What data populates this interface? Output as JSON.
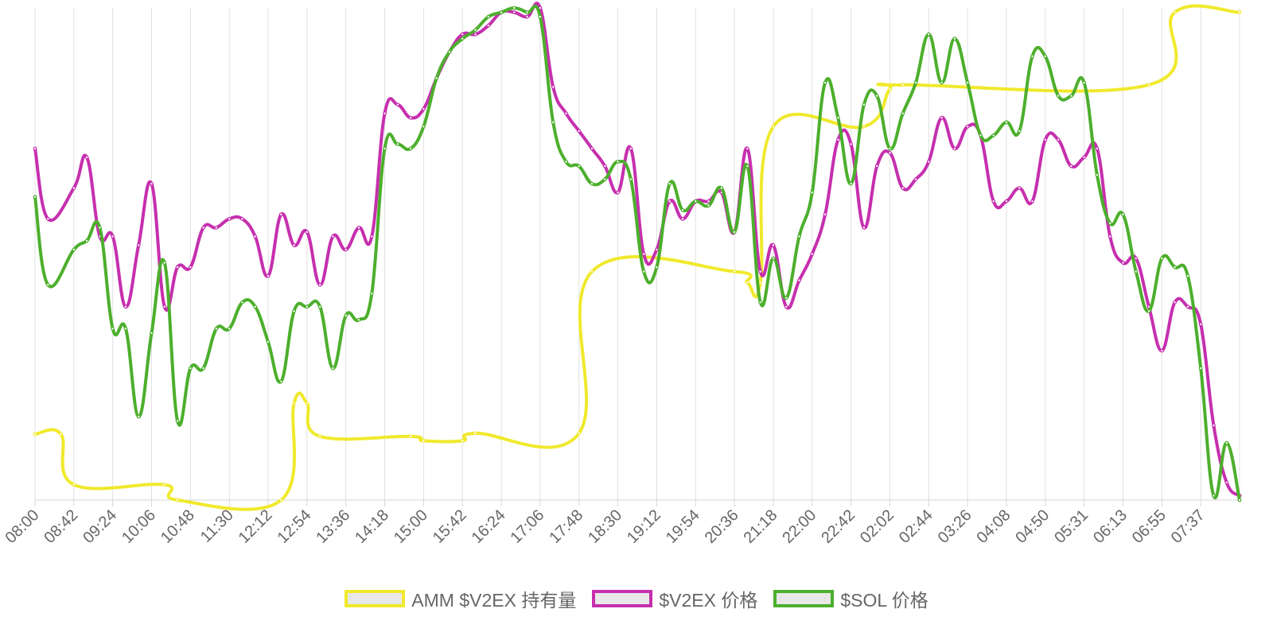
{
  "chart_data": {
    "type": "line",
    "title": "",
    "xlabel": "",
    "ylabel": "",
    "categories": [
      "08:00",
      "08:42",
      "09:24",
      "10:06",
      "10:48",
      "11:30",
      "12:12",
      "12:54",
      "13:36",
      "14:18",
      "15:00",
      "15:42",
      "16:24",
      "17:06",
      "17:48",
      "18:30",
      "19:12",
      "19:54",
      "20:36",
      "21:18",
      "22:00",
      "22:42",
      "02:02",
      "02:44",
      "03:26",
      "04:08",
      "04:50",
      "05:31",
      "06:13",
      "06:55",
      "07:37"
    ],
    "n_points": 93,
    "series": [
      {
        "name": "AMM $V2EX 持有量",
        "color": "#f0e92c",
        "points": [
          [
            0,
            15
          ],
          [
            2,
            15
          ],
          [
            3,
            3.5
          ],
          [
            10,
            3.5
          ],
          [
            11,
            0
          ],
          [
            19,
            0
          ],
          [
            20,
            22
          ],
          [
            21,
            22
          ],
          [
            22,
            14.5
          ],
          [
            29,
            14.5
          ],
          [
            30,
            13.5
          ],
          [
            33,
            13.5
          ],
          [
            34,
            15.2
          ],
          [
            42,
            15.2
          ],
          [
            43,
            52
          ],
          [
            54,
            52
          ],
          [
            55,
            49.5
          ],
          [
            56,
            49.5
          ],
          [
            57,
            85
          ],
          [
            64,
            85
          ],
          [
            66,
            93.5
          ],
          [
            67,
            94.5
          ],
          [
            86,
            94.5
          ],
          [
            88,
            111
          ],
          [
            93,
            111
          ]
        ]
      },
      {
        "name": "$V2EX 价格",
        "color": "#c62fae",
        "points": [
          [
            0,
            80
          ],
          [
            1,
            64
          ],
          [
            3,
            71
          ],
          [
            4,
            78
          ],
          [
            5,
            60
          ],
          [
            6,
            60
          ],
          [
            7,
            44
          ],
          [
            8,
            58
          ],
          [
            9,
            72
          ],
          [
            10,
            44
          ],
          [
            11,
            53
          ],
          [
            12,
            53
          ],
          [
            13,
            62
          ],
          [
            14,
            62
          ],
          [
            15,
            64
          ],
          [
            16,
            64
          ],
          [
            17,
            60
          ],
          [
            18,
            51
          ],
          [
            19,
            65
          ],
          [
            20,
            58
          ],
          [
            21,
            61
          ],
          [
            22,
            49
          ],
          [
            23,
            60
          ],
          [
            24,
            57
          ],
          [
            25,
            62
          ],
          [
            26,
            60
          ],
          [
            27,
            88
          ],
          [
            28,
            90
          ],
          [
            29,
            87
          ],
          [
            30,
            89
          ],
          [
            31,
            96
          ],
          [
            32,
            102
          ],
          [
            33,
            106
          ],
          [
            34,
            106
          ],
          [
            35,
            108
          ],
          [
            36,
            111
          ],
          [
            37,
            111
          ],
          [
            38,
            110
          ],
          [
            39,
            112
          ],
          [
            40,
            94
          ],
          [
            41,
            88
          ],
          [
            42,
            84
          ],
          [
            43,
            80
          ],
          [
            44,
            76
          ],
          [
            45,
            70
          ],
          [
            46,
            80
          ],
          [
            47,
            56
          ],
          [
            48,
            57
          ],
          [
            49,
            68
          ],
          [
            50,
            64
          ],
          [
            51,
            68
          ],
          [
            52,
            68
          ],
          [
            53,
            70
          ],
          [
            54,
            61
          ],
          [
            55,
            80
          ],
          [
            56,
            52
          ],
          [
            57,
            58
          ],
          [
            58,
            44
          ],
          [
            59,
            50
          ],
          [
            60,
            56
          ],
          [
            61,
            65
          ],
          [
            62,
            82
          ],
          [
            63,
            81
          ],
          [
            64,
            62
          ],
          [
            65,
            76
          ],
          [
            66,
            79
          ],
          [
            67,
            71
          ],
          [
            68,
            73
          ],
          [
            69,
            77
          ],
          [
            70,
            87
          ],
          [
            71,
            80
          ],
          [
            72,
            85
          ],
          [
            73,
            83
          ],
          [
            74,
            68
          ],
          [
            75,
            68
          ],
          [
            76,
            71
          ],
          [
            77,
            68
          ],
          [
            78,
            82
          ],
          [
            79,
            82
          ],
          [
            80,
            76
          ],
          [
            81,
            78
          ],
          [
            82,
            80
          ],
          [
            83,
            60
          ],
          [
            84,
            54
          ],
          [
            85,
            55
          ],
          [
            86,
            44
          ],
          [
            87,
            34
          ],
          [
            88,
            45
          ],
          [
            89,
            44
          ],
          [
            90,
            40
          ],
          [
            91,
            17
          ],
          [
            92,
            4
          ],
          [
            93,
            1
          ]
        ]
      },
      {
        "name": "$SOL 价格",
        "color": "#4caf2c",
        "points": [
          [
            0,
            69
          ],
          [
            1,
            49
          ],
          [
            3,
            57
          ],
          [
            4,
            59
          ],
          [
            5,
            62
          ],
          [
            6,
            39
          ],
          [
            7,
            39
          ],
          [
            8,
            19
          ],
          [
            9,
            38
          ],
          [
            10,
            54
          ],
          [
            11,
            18
          ],
          [
            12,
            30
          ],
          [
            13,
            30
          ],
          [
            14,
            39
          ],
          [
            15,
            39
          ],
          [
            16,
            45
          ],
          [
            17,
            44
          ],
          [
            18,
            36
          ],
          [
            19,
            27
          ],
          [
            20,
            43
          ],
          [
            21,
            44
          ],
          [
            22,
            44
          ],
          [
            23,
            30
          ],
          [
            24,
            42
          ],
          [
            25,
            41
          ],
          [
            26,
            47
          ],
          [
            27,
            80
          ],
          [
            28,
            81
          ],
          [
            29,
            80
          ],
          [
            30,
            85
          ],
          [
            31,
            96
          ],
          [
            32,
            102
          ],
          [
            33,
            105
          ],
          [
            34,
            107
          ],
          [
            35,
            110
          ],
          [
            36,
            111
          ],
          [
            37,
            112
          ],
          [
            38,
            111
          ],
          [
            39,
            110
          ],
          [
            40,
            86
          ],
          [
            41,
            77
          ],
          [
            42,
            76
          ],
          [
            43,
            72
          ],
          [
            44,
            73
          ],
          [
            45,
            77
          ],
          [
            46,
            73
          ],
          [
            47,
            52
          ],
          [
            48,
            53
          ],
          [
            49,
            72
          ],
          [
            50,
            66
          ],
          [
            51,
            68
          ],
          [
            52,
            67
          ],
          [
            53,
            71
          ],
          [
            54,
            61
          ],
          [
            55,
            76
          ],
          [
            56,
            45
          ],
          [
            57,
            55
          ],
          [
            58,
            46
          ],
          [
            59,
            60
          ],
          [
            60,
            70
          ],
          [
            61,
            95
          ],
          [
            62,
            87
          ],
          [
            63,
            72
          ],
          [
            64,
            90
          ],
          [
            65,
            92
          ],
          [
            66,
            80
          ],
          [
            67,
            88
          ],
          [
            68,
            95
          ],
          [
            69,
            106
          ],
          [
            70,
            95
          ],
          [
            71,
            105
          ],
          [
            72,
            95
          ],
          [
            73,
            83
          ],
          [
            74,
            83
          ],
          [
            75,
            86
          ],
          [
            76,
            84
          ],
          [
            77,
            101
          ],
          [
            78,
            101
          ],
          [
            79,
            92
          ],
          [
            80,
            92
          ],
          [
            81,
            95
          ],
          [
            82,
            74
          ],
          [
            83,
            63
          ],
          [
            84,
            65
          ],
          [
            85,
            52
          ],
          [
            86,
            43
          ],
          [
            87,
            55
          ],
          [
            88,
            53
          ],
          [
            89,
            51
          ],
          [
            90,
            30
          ],
          [
            91,
            1
          ],
          [
            92,
            13
          ],
          [
            93,
            0
          ]
        ]
      }
    ],
    "y_range": [
      0,
      112
    ],
    "grid": "vertical",
    "legend_position": "bottom-center",
    "show_y_axis_labels": false
  }
}
